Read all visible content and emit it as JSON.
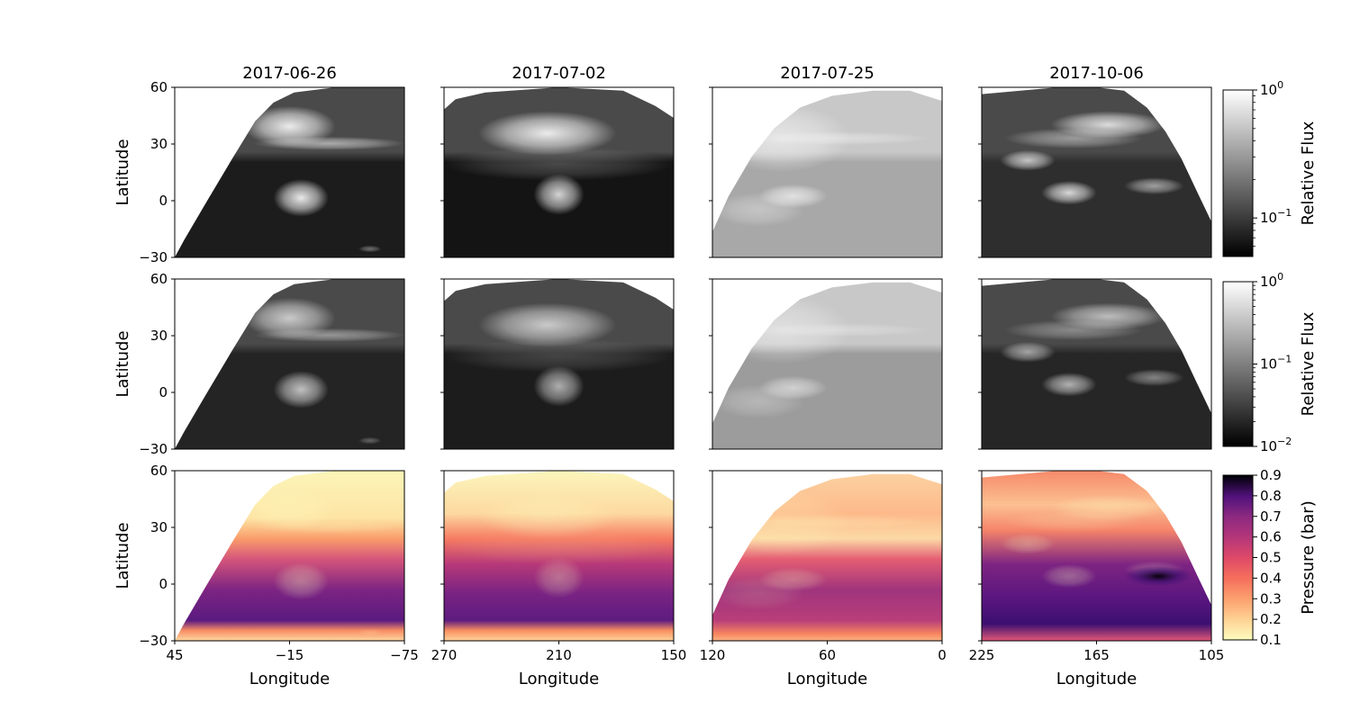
{
  "chart_data": {
    "type": "heatmap",
    "grid": {
      "rows": 3,
      "cols": 4
    },
    "column_titles": [
      "2017-06-26",
      "2017-07-02",
      "2017-07-25",
      "2017-10-06"
    ],
    "ylabel": "Latitude",
    "xlabel": "Longitude",
    "ylim": [
      -30,
      60
    ],
    "yticks": [
      -30,
      0,
      30,
      60
    ],
    "yticklabels": [
      "−30",
      "0",
      "30",
      "60"
    ],
    "columns": [
      {
        "xlim": [
          45,
          -75
        ],
        "xticks": [
          45,
          -15,
          -75
        ],
        "xticklabels": [
          "45",
          "−15",
          "−75"
        ]
      },
      {
        "xlim": [
          270,
          150
        ],
        "xticks": [
          270,
          210,
          150
        ],
        "xticklabels": [
          "270",
          "210",
          "150"
        ]
      },
      {
        "xlim": [
          120,
          0
        ],
        "xticks": [
          120,
          60,
          0
        ],
        "xticklabels": [
          "120",
          "60",
          "0"
        ]
      },
      {
        "xlim": [
          225,
          105
        ],
        "xticks": [
          225,
          165,
          105
        ],
        "xticklabels": [
          "225",
          "165",
          "105"
        ]
      }
    ],
    "rows": [
      {
        "colormap": "gray",
        "colorbar": {
          "label": "Relative Flux",
          "scale": "log",
          "range": [
            0.05,
            1
          ],
          "ticks": [
            {
              "value": 1,
              "base": "10",
              "exp": "0"
            },
            {
              "value": 0.1,
              "base": "10",
              "exp": "−1"
            }
          ]
        }
      },
      {
        "colormap": "gray",
        "colorbar": {
          "label": "Relative Flux",
          "scale": "log",
          "range": [
            0.01,
            1
          ],
          "ticks": [
            {
              "value": 1,
              "base": "10",
              "exp": "0"
            },
            {
              "value": 0.1,
              "base": "10",
              "exp": "−1"
            },
            {
              "value": 0.01,
              "base": "10",
              "exp": "−2"
            }
          ]
        }
      },
      {
        "colormap": "magma_r",
        "colorbar": {
          "label": "Pressure (bar)",
          "scale": "linear",
          "range": [
            0.1,
            0.9
          ],
          "ticks": [
            {
              "value": 0.1,
              "label": "0.1"
            },
            {
              "value": 0.2,
              "label": "0.2"
            },
            {
              "value": 0.3,
              "label": "0.3"
            },
            {
              "value": 0.4,
              "label": "0.4"
            },
            {
              "value": 0.5,
              "label": "0.5"
            },
            {
              "value": 0.6,
              "label": "0.6"
            },
            {
              "value": 0.7,
              "label": "0.7"
            },
            {
              "value": 0.8,
              "label": "0.8"
            },
            {
              "value": 0.9,
              "label": "0.9"
            }
          ]
        }
      }
    ]
  },
  "colors": {
    "gray_bright": "#f4f4f4",
    "gray_mid": "#8f8f8f",
    "gray_dark": "#0b0b0b",
    "magma_light": "#fcfdbf",
    "magma_orange": "#f8765c",
    "magma_purple": "#721f81",
    "magma_dark": "#000004"
  }
}
